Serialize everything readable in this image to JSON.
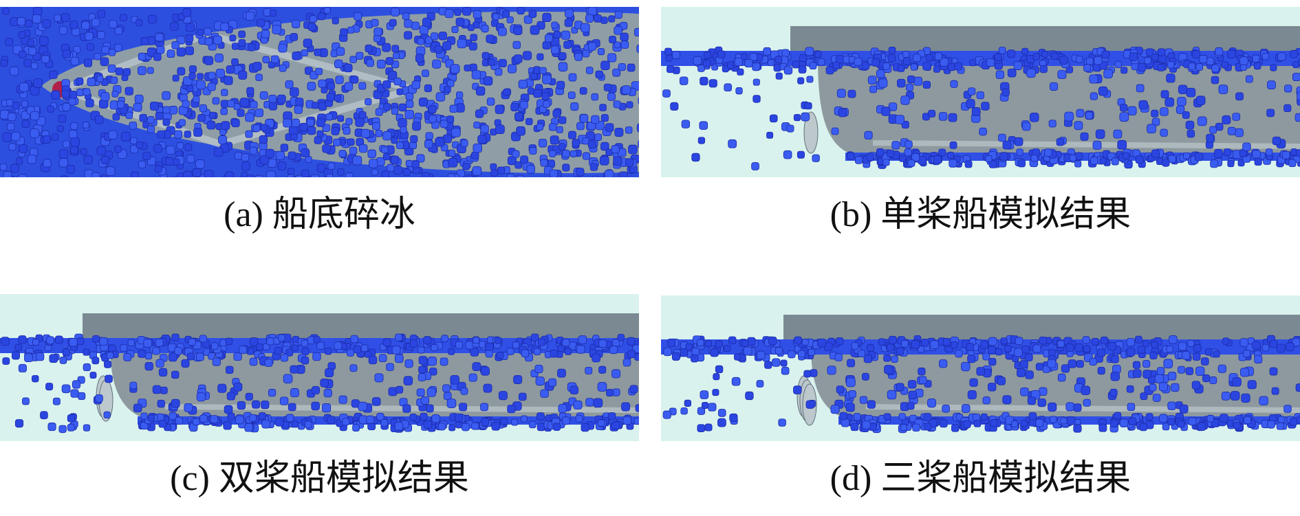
{
  "panels": [
    {
      "caption": "(a) 船底碎冰"
    },
    {
      "caption": "(b) 单桨船模拟结果"
    },
    {
      "caption": "(c) 双桨船模拟结果"
    },
    {
      "caption": "(d) 三桨船模拟结果"
    }
  ]
}
